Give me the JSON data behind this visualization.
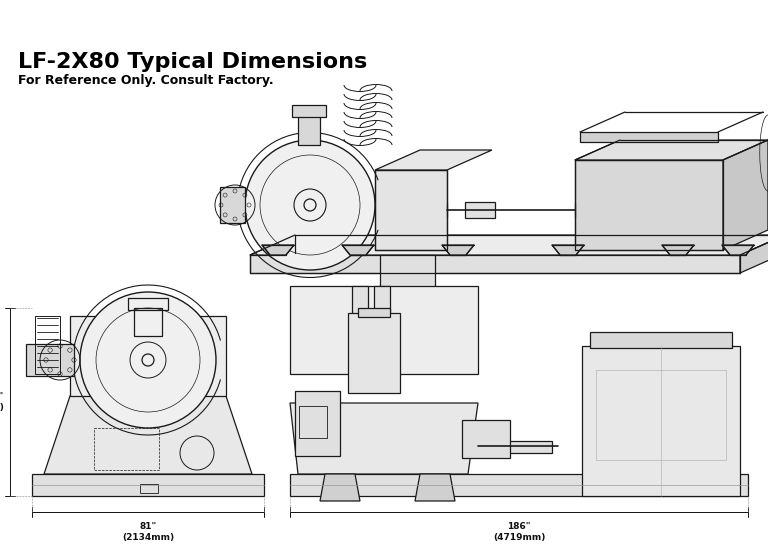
{
  "bg_color": "#ffffff",
  "title": "LF-2X80 Typical Dimensions",
  "subtitle": "For Reference Only. Consult Factory.",
  "title_fontsize": 16,
  "subtitle_fontsize": 9,
  "line_color": "#1a1a1a",
  "dim_color": "#111111"
}
